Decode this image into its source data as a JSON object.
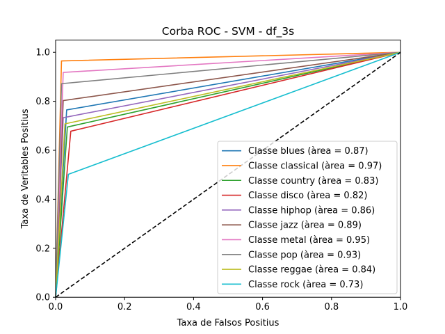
{
  "chart_data": {
    "type": "line",
    "title": "Corba ROC - SVM - df_3s",
    "xlabel": "Taxa de Falsos Positius",
    "ylabel": "Taxa de Veritables Positius",
    "xlim": [
      0,
      1
    ],
    "ylim": [
      0,
      1.05
    ],
    "xticks": [
      {
        "value": 0.0,
        "label": "0.0"
      },
      {
        "value": 0.2,
        "label": "0.2"
      },
      {
        "value": 0.4,
        "label": "0.4"
      },
      {
        "value": 0.6,
        "label": "0.6"
      },
      {
        "value": 0.8,
        "label": "0.8"
      },
      {
        "value": 1.0,
        "label": "1.0"
      }
    ],
    "yticks": [
      {
        "value": 0.0,
        "label": "0.0"
      },
      {
        "value": 0.2,
        "label": "0.2"
      },
      {
        "value": 0.4,
        "label": "0.4"
      },
      {
        "value": 0.6,
        "label": "0.6"
      },
      {
        "value": 0.8,
        "label": "0.8"
      },
      {
        "value": 1.0,
        "label": "1.0"
      }
    ],
    "grid": false,
    "legend_position": "lower-right",
    "diagonal": {
      "x": [
        0,
        1
      ],
      "y": [
        0,
        1
      ],
      "color": "#000000",
      "style": "dashed"
    },
    "series": [
      {
        "name": "Classe blues (àrea = 0.87)",
        "color": "#1f77b4",
        "x": [
          0,
          0.032,
          1
        ],
        "y": [
          0,
          0.765,
          1
        ]
      },
      {
        "name": "Classe classical (àrea = 0.97)",
        "color": "#ff7f0e",
        "x": [
          0,
          0.017,
          1
        ],
        "y": [
          0,
          0.965,
          1
        ]
      },
      {
        "name": "Classe country (àrea = 0.83)",
        "color": "#2ca02c",
        "x": [
          0,
          0.034,
          1
        ],
        "y": [
          0,
          0.695,
          1
        ]
      },
      {
        "name": "Classe disco (àrea = 0.82)",
        "color": "#d62728",
        "x": [
          0,
          0.044,
          1
        ],
        "y": [
          0,
          0.678,
          1
        ]
      },
      {
        "name": "Classe hiphop (àrea = 0.86)",
        "color": "#9467bd",
        "x": [
          0,
          0.022,
          1
        ],
        "y": [
          0,
          0.733,
          1
        ]
      },
      {
        "name": "Classe jazz (àrea = 0.89)",
        "color": "#8c564b",
        "x": [
          0,
          0.022,
          1
        ],
        "y": [
          0,
          0.803,
          1
        ]
      },
      {
        "name": "Classe metal (àrea = 0.95)",
        "color": "#e377c2",
        "x": [
          0,
          0.022,
          1
        ],
        "y": [
          0,
          0.918,
          1
        ]
      },
      {
        "name": "Classe pop (àrea = 0.93)",
        "color": "#7f7f7f",
        "x": [
          0,
          0.017,
          1
        ],
        "y": [
          0,
          0.872,
          1
        ]
      },
      {
        "name": "Classe reggae (àrea = 0.84)",
        "color": "#bcbd22",
        "x": [
          0,
          0.027,
          1
        ],
        "y": [
          0,
          0.708,
          1
        ]
      },
      {
        "name": "Classe rock (àrea = 0.73)",
        "color": "#17becf",
        "x": [
          0,
          0.037,
          1
        ],
        "y": [
          0,
          0.502,
          1
        ]
      }
    ]
  }
}
